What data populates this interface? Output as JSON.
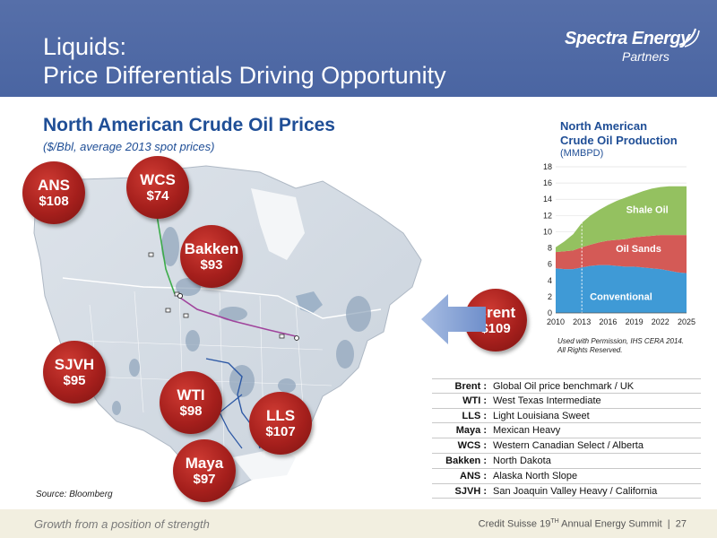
{
  "header": {
    "title_line1": "Liquids:",
    "title_line2": "Price Differentials Driving Opportunity",
    "logo_name": "Spectra Energy",
    "logo_sub": "Partners"
  },
  "section": {
    "title": "North American Crude Oil Prices",
    "subtitle": "($/Bbl, average 2013 spot prices)"
  },
  "prices": [
    {
      "name": "ANS",
      "price": "$108"
    },
    {
      "name": "WCS",
      "price": "$74"
    },
    {
      "name": "Bakken",
      "price": "$93"
    },
    {
      "name": "Brent",
      "price": "$109"
    },
    {
      "name": "SJVH",
      "price": "$95"
    },
    {
      "name": "WTI",
      "price": "$98"
    },
    {
      "name": "LLS",
      "price": "$107"
    },
    {
      "name": "Maya",
      "price": "$97"
    }
  ],
  "source": "Source: Bloomberg",
  "chart": {
    "title_line1": "North American",
    "title_line2": "Crude Oil Production",
    "unit": "(MMBPD)",
    "note_line1": "Used with Permission, IHS CERA 2014.",
    "note_line2": "All Rights Reserved."
  },
  "chart_data": {
    "type": "area",
    "title": "North American Crude Oil Production",
    "ylabel": "(MMBPD)",
    "x": [
      2010,
      2011,
      2012,
      2013,
      2014,
      2015,
      2016,
      2017,
      2018,
      2019,
      2020,
      2021,
      2022,
      2023,
      2024,
      2025
    ],
    "xticks": [
      2010,
      2013,
      2016,
      2019,
      2022,
      2025
    ],
    "ylim": [
      0,
      18
    ],
    "yticks": [
      0,
      2,
      4,
      6,
      8,
      10,
      12,
      14,
      16,
      18
    ],
    "stacked": true,
    "series": [
      {
        "name": "Conventional",
        "color": "#3f9ad6",
        "values": [
          5.5,
          5.4,
          5.4,
          5.6,
          5.8,
          5.9,
          5.9,
          5.8,
          5.7,
          5.7,
          5.6,
          5.5,
          5.4,
          5.2,
          5.0,
          4.9
        ]
      },
      {
        "name": "Oil Sands",
        "color": "#d45a56",
        "values": [
          2.0,
          2.2,
          2.3,
          2.5,
          2.6,
          2.8,
          3.0,
          3.2,
          3.4,
          3.6,
          3.8,
          4.0,
          4.2,
          4.4,
          4.6,
          4.7
        ]
      },
      {
        "name": "Shale Oil",
        "color": "#94c160",
        "values": [
          0.6,
          1.2,
          2.0,
          3.0,
          3.6,
          4.0,
          4.4,
          4.8,
          5.1,
          5.3,
          5.6,
          5.8,
          5.9,
          6.0,
          6.0,
          6.0
        ]
      }
    ]
  },
  "legend": [
    {
      "abbr": "Brent :",
      "desc": "Global Oil price benchmark / UK"
    },
    {
      "abbr": "WTI :",
      "desc": "West Texas Intermediate"
    },
    {
      "abbr": "LLS :",
      "desc": "Light Louisiana Sweet"
    },
    {
      "abbr": "Maya :",
      "desc": "Mexican Heavy"
    },
    {
      "abbr": "WCS :",
      "desc": "Western Canadian Select / Alberta"
    },
    {
      "abbr": "Bakken :",
      "desc": "North Dakota"
    },
    {
      "abbr": "ANS :",
      "desc": "Alaska North Slope"
    },
    {
      "abbr": "SJVH :",
      "desc": "San Joaquin Valley Heavy / California"
    }
  ],
  "footer": {
    "tagline": "Growth from a position of strength",
    "event_pre": "Credit Suisse 19",
    "event_sup": "TH",
    "event_post": " Annual Energy Summit",
    "separator": "|",
    "page": "27"
  },
  "colors": {
    "header": "#4c67a4",
    "title_blue": "#1f4e96",
    "bubble_red": "#a51f1c",
    "footer_bg": "#f2efe0"
  }
}
